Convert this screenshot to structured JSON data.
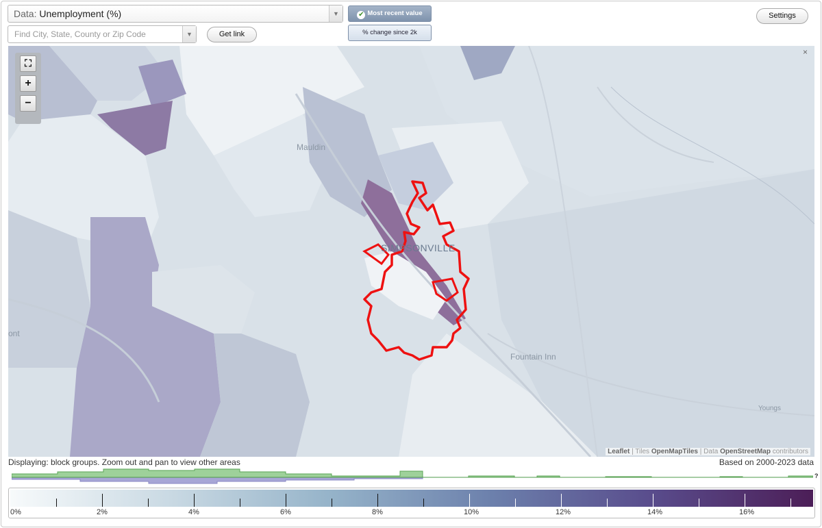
{
  "controls": {
    "data_label": "Data:",
    "data_value": "Unemployment (%)",
    "search_placeholder": "Find City, State, County or Zip Code",
    "get_link": "Get link",
    "mode_recent": "Most recent value",
    "mode_change": "% change since 2k",
    "settings": "Settings",
    "dropdown_arrow": "▼"
  },
  "map": {
    "labels": {
      "mauldin": "Mauldin",
      "simpsonville": "SIMPSONVILLE",
      "fountain_inn": "Fountain Inn",
      "youngs": "Youngs",
      "ont": "ont"
    },
    "zoom": {
      "expand": "⛶",
      "plus": "+",
      "minus": "−"
    },
    "attribution": {
      "leaflet": "Leaflet",
      "sep1": " | Tiles ",
      "tiles": "OpenMapTiles",
      "sep2": " | Data ",
      "osm": "OpenStreetMap",
      "tail": " contributors"
    },
    "boundary_color": "#ee1111"
  },
  "info": {
    "displaying": "Displaying: block groups. Zoom out and pan to view other areas",
    "based_on": "Based on 2000-2023 data",
    "help": "?"
  },
  "legend": {
    "labels": [
      "0%",
      "2%",
      "4%",
      "6%",
      "8%",
      "10%",
      "12%",
      "14%",
      "16%"
    ],
    "scale_colors": [
      "#f7fafb",
      "#c9d9e3",
      "#95b3c9",
      "#6c80ac",
      "#594c8c",
      "#4c1e57"
    ]
  }
}
